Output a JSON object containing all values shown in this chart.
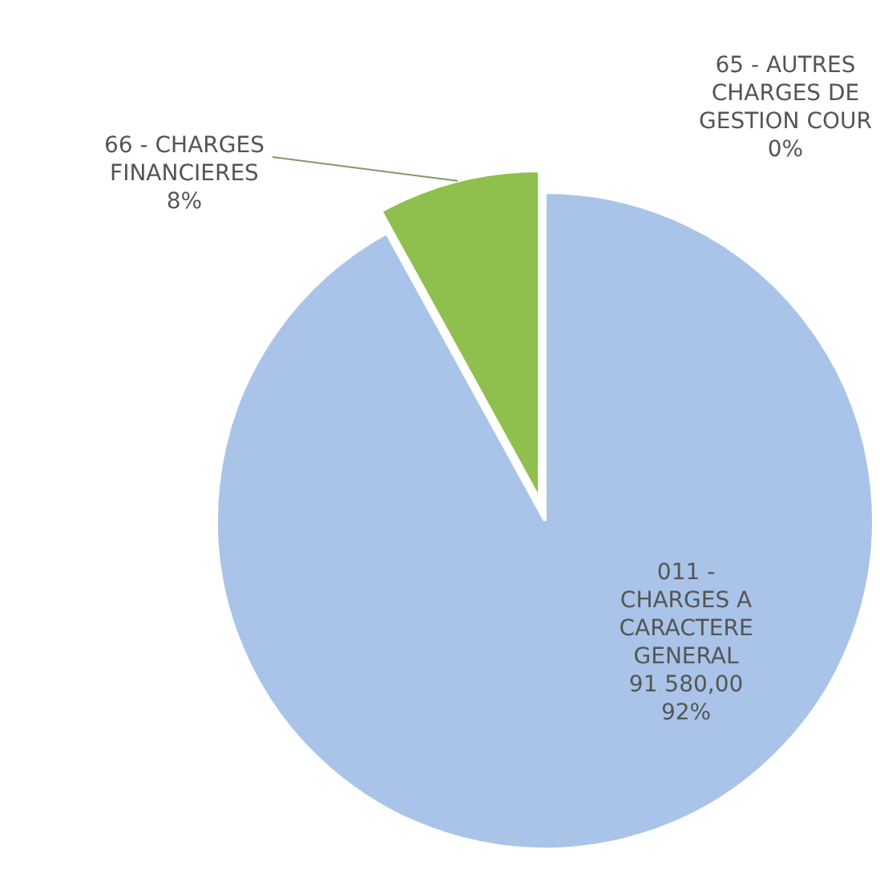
{
  "chart_data": {
    "type": "pie",
    "categories": [
      "011 - CHARGES A CARACTERE GENERAL",
      "66 - CHARGES FINANCIERES",
      "65 - AUTRES CHARGES DE GESTION COUR"
    ],
    "values": [
      92,
      8,
      0
    ],
    "colors": [
      "#a9c4e8",
      "#8fbf4d",
      "#e07b39"
    ],
    "value_labels": [
      "91 580,00\n92%",
      "8%",
      "0%"
    ]
  }
}
